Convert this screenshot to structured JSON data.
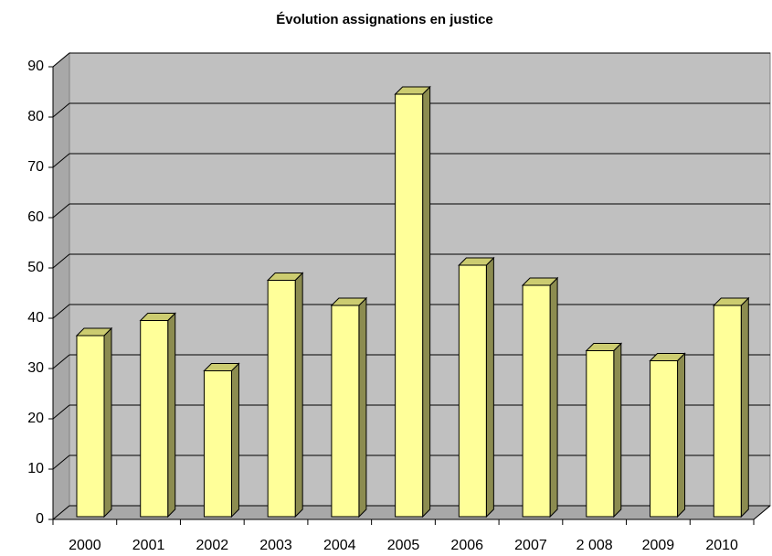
{
  "chart_data": {
    "type": "bar",
    "title": "Évolution assignations en justice",
    "categories": [
      "2000",
      "2001",
      "2002",
      "2003",
      "2004",
      "2005",
      "2006",
      "2007",
      "2 008",
      "2009",
      "2010"
    ],
    "values": [
      36,
      39,
      29,
      47,
      42,
      84,
      50,
      46,
      33,
      31,
      42
    ],
    "color": "#ffff99",
    "ylim": [
      0,
      90
    ],
    "yticks": [
      0,
      10,
      20,
      30,
      40,
      50,
      60,
      70,
      80,
      90
    ],
    "grid": true
  }
}
